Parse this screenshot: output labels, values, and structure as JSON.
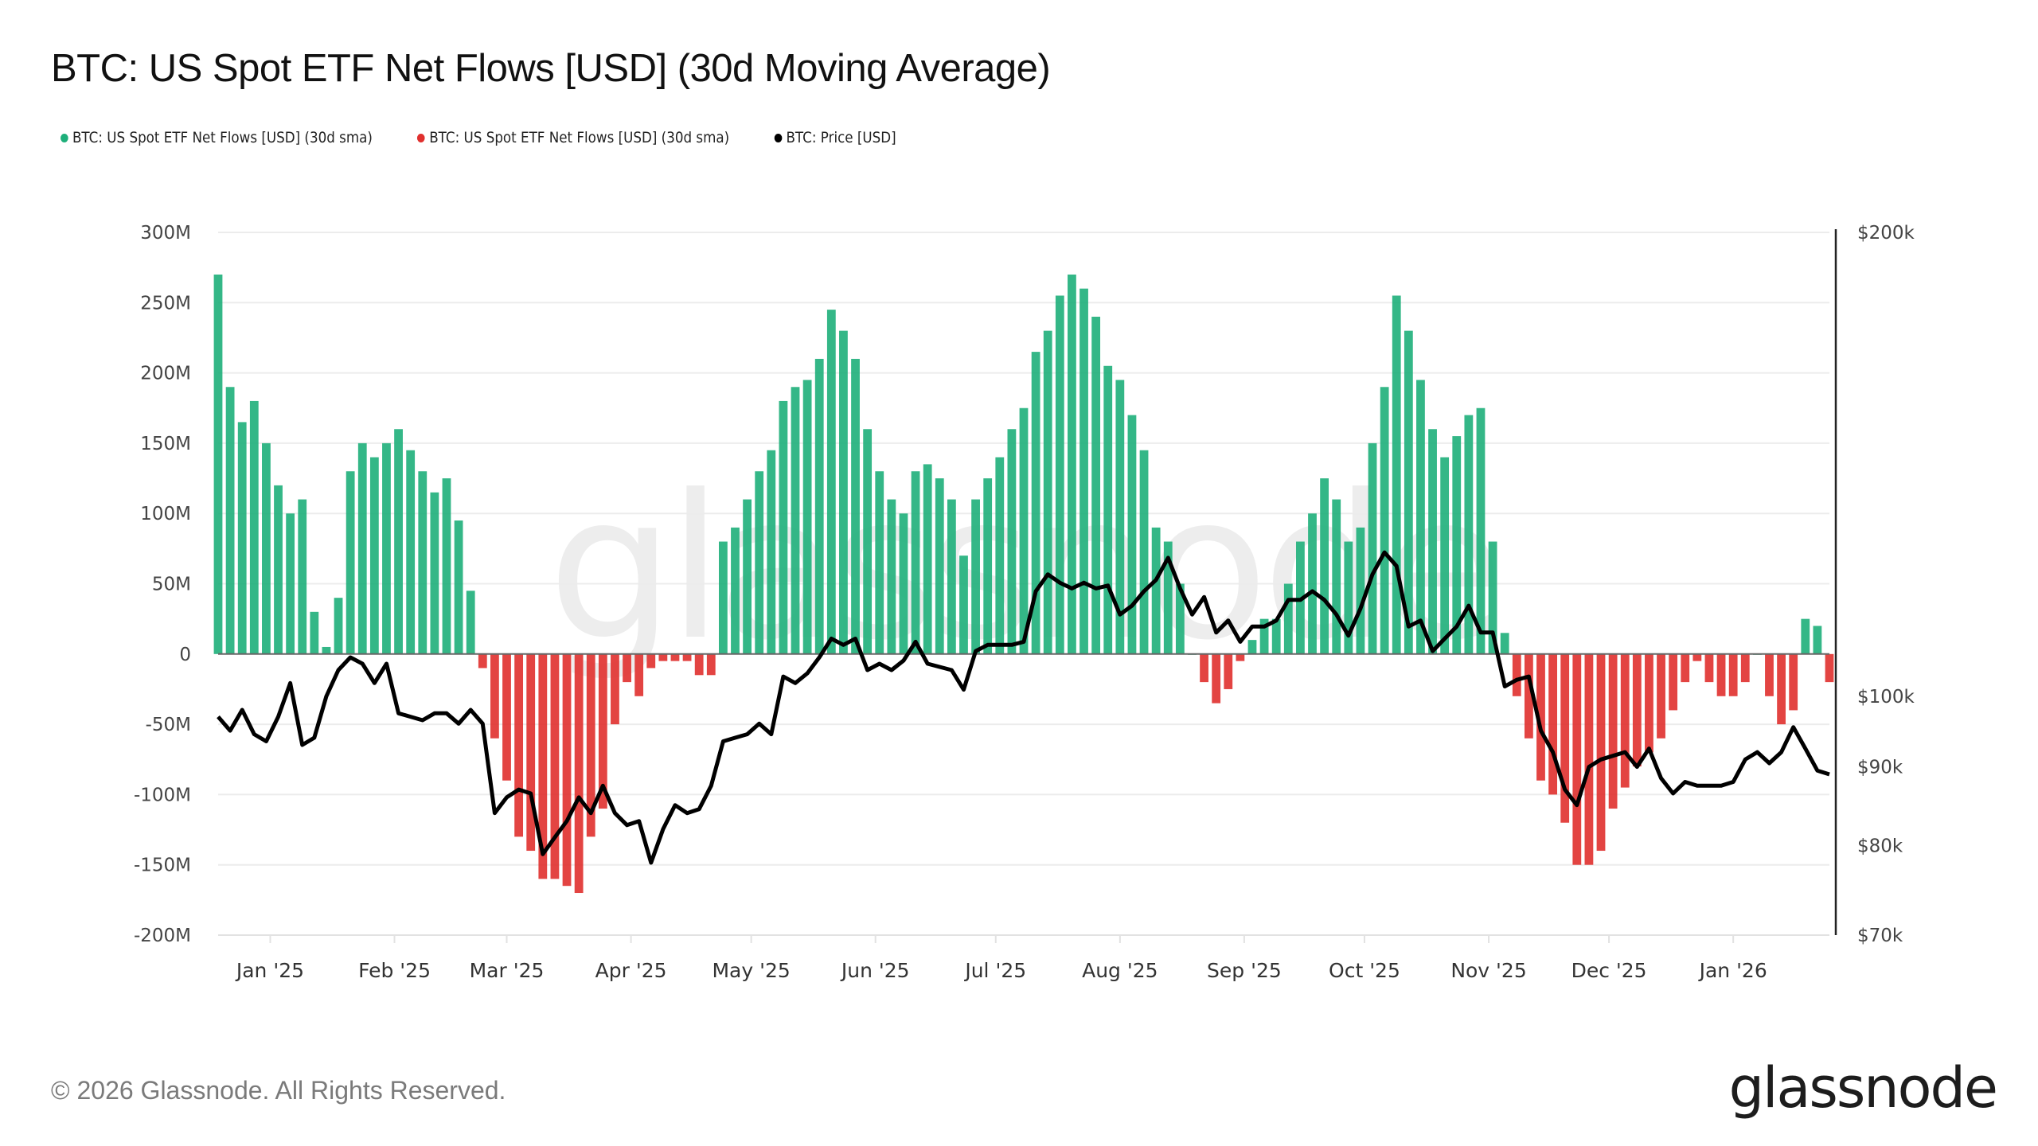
{
  "title": "BTC: US Spot ETF Net Flows [USD] (30d Moving Average)",
  "legend": [
    {
      "label": "BTC: US Spot ETF Net Flows [USD] (30d sma)",
      "color": "#1eaf7a"
    },
    {
      "label": "BTC: US Spot ETF Net Flows [USD] (30d sma)",
      "color": "#e0302e"
    },
    {
      "label": "BTC: Price [USD]",
      "color": "#000000"
    }
  ],
  "footer": "© 2026 Glassnode. All Rights Reserved.",
  "logo": "glassnode",
  "watermark": "glassnode",
  "chart_data": {
    "type": "bar+line",
    "title": "BTC: US Spot ETF Net Flows [USD] (30d Moving Average)",
    "left_axis": {
      "scale": "linear",
      "range": [
        -200,
        300
      ],
      "unit": "M USD",
      "ticks": [
        {
          "v": 300,
          "label": "300M"
        },
        {
          "v": 250,
          "label": "250M"
        },
        {
          "v": 200,
          "label": "200M"
        },
        {
          "v": 150,
          "label": "150M"
        },
        {
          "v": 100,
          "label": "100M"
        },
        {
          "v": 50,
          "label": "50M"
        },
        {
          "v": 0,
          "label": "0"
        },
        {
          "v": -50,
          "label": "-50M"
        },
        {
          "v": -100,
          "label": "-100M"
        },
        {
          "v": -150,
          "label": "-150M"
        },
        {
          "v": -200,
          "label": "-200M"
        }
      ]
    },
    "right_axis": {
      "scale": "log",
      "range": [
        70,
        200
      ],
      "unit": "k USD",
      "ticks": [
        {
          "v": 200,
          "label": "$200k"
        },
        {
          "v": 100,
          "label": "$100k"
        },
        {
          "v": 90,
          "label": "$90k"
        },
        {
          "v": 80,
          "label": "$80k"
        },
        {
          "v": 70,
          "label": "$70k"
        }
      ]
    },
    "x_axis": {
      "range": [
        "2024-12-19",
        "2026-01-25"
      ],
      "ticks": [
        {
          "date": "2025-01-01",
          "label": "Jan '25"
        },
        {
          "date": "2025-02-01",
          "label": "Feb '25"
        },
        {
          "date": "2025-03-01",
          "label": "Mar '25"
        },
        {
          "date": "2025-04-01",
          "label": "Apr '25"
        },
        {
          "date": "2025-05-01",
          "label": "May '25"
        },
        {
          "date": "2025-06-01",
          "label": "Jun '25"
        },
        {
          "date": "2025-07-01",
          "label": "Jul '25"
        },
        {
          "date": "2025-08-01",
          "label": "Aug '25"
        },
        {
          "date": "2025-09-01",
          "label": "Sep '25"
        },
        {
          "date": "2025-10-01",
          "label": "Oct '25"
        },
        {
          "date": "2025-11-01",
          "label": "Nov '25"
        },
        {
          "date": "2025-12-01",
          "label": "Dec '25"
        },
        {
          "date": "2026-01-01",
          "label": "Jan '26"
        }
      ]
    },
    "grid": true,
    "legend_position": "top-left",
    "positive_color": "#1eaf7a",
    "negative_color": "#e0302e",
    "price_color": "#000000",
    "columns": [
      "date",
      "net_flow_30d_sma_musd",
      "price_kusd"
    ],
    "points": [
      [
        "2024-12-19",
        270,
        97
      ],
      [
        "2024-12-22",
        190,
        95
      ],
      [
        "2024-12-25",
        165,
        98
      ],
      [
        "2024-12-28",
        180,
        94.5
      ],
      [
        "2024-12-31",
        150,
        93.5
      ],
      [
        "2025-01-03",
        120,
        97
      ],
      [
        "2025-01-06",
        100,
        102
      ],
      [
        "2025-01-09",
        110,
        93
      ],
      [
        "2025-01-12",
        30,
        94
      ],
      [
        "2025-01-15",
        5,
        100
      ],
      [
        "2025-01-18",
        40,
        104
      ],
      [
        "2025-01-21",
        130,
        106
      ],
      [
        "2025-01-24",
        150,
        105
      ],
      [
        "2025-01-27",
        140,
        102
      ],
      [
        "2025-01-30",
        150,
        105
      ],
      [
        "2025-02-02",
        160,
        97.5
      ],
      [
        "2025-02-05",
        145,
        97
      ],
      [
        "2025-02-08",
        130,
        96.5
      ],
      [
        "2025-02-11",
        115,
        97.5
      ],
      [
        "2025-02-14",
        125,
        97.5
      ],
      [
        "2025-02-17",
        95,
        96
      ],
      [
        "2025-02-20",
        45,
        98
      ],
      [
        "2025-02-23",
        -10,
        96
      ],
      [
        "2025-02-26",
        -60,
        84
      ],
      [
        "2025-03-01",
        -90,
        86
      ],
      [
        "2025-03-04",
        -130,
        87
      ],
      [
        "2025-03-07",
        -140,
        86.5
      ],
      [
        "2025-03-10",
        -160,
        79
      ],
      [
        "2025-03-13",
        -160,
        81
      ],
      [
        "2025-03-16",
        -165,
        83
      ],
      [
        "2025-03-19",
        -170,
        86
      ],
      [
        "2025-03-22",
        -130,
        84
      ],
      [
        "2025-03-25",
        -110,
        87.5
      ],
      [
        "2025-03-28",
        -50,
        84
      ],
      [
        "2025-03-31",
        -20,
        82.5
      ],
      [
        "2025-04-03",
        -30,
        83
      ],
      [
        "2025-04-06",
        -10,
        78
      ],
      [
        "2025-04-09",
        -5,
        82
      ],
      [
        "2025-04-12",
        -5,
        85
      ],
      [
        "2025-04-15",
        -5,
        84
      ],
      [
        "2025-04-18",
        -15,
        84.5
      ],
      [
        "2025-04-21",
        -15,
        87.5
      ],
      [
        "2025-04-24",
        80,
        93.5
      ],
      [
        "2025-04-27",
        90,
        94
      ],
      [
        "2025-04-30",
        110,
        94.5
      ],
      [
        "2025-05-03",
        130,
        96
      ],
      [
        "2025-05-06",
        145,
        94.5
      ],
      [
        "2025-05-09",
        180,
        103
      ],
      [
        "2025-05-12",
        190,
        102
      ],
      [
        "2025-05-15",
        195,
        103.5
      ],
      [
        "2025-05-18",
        210,
        106
      ],
      [
        "2025-05-21",
        245,
        109
      ],
      [
        "2025-05-24",
        230,
        108
      ],
      [
        "2025-05-27",
        210,
        109
      ],
      [
        "2025-05-30",
        160,
        104
      ],
      [
        "2025-06-02",
        130,
        105
      ],
      [
        "2025-06-05",
        110,
        104
      ],
      [
        "2025-06-08",
        100,
        105.5
      ],
      [
        "2025-06-11",
        130,
        108.5
      ],
      [
        "2025-06-14",
        135,
        105
      ],
      [
        "2025-06-17",
        125,
        104.5
      ],
      [
        "2025-06-20",
        110,
        104
      ],
      [
        "2025-06-23",
        70,
        101
      ],
      [
        "2025-06-26",
        110,
        107
      ],
      [
        "2025-06-29",
        125,
        108
      ],
      [
        "2025-07-02",
        140,
        108
      ],
      [
        "2025-07-05",
        160,
        108
      ],
      [
        "2025-07-08",
        175,
        108.5
      ],
      [
        "2025-07-11",
        215,
        117
      ],
      [
        "2025-07-14",
        230,
        120
      ],
      [
        "2025-07-17",
        255,
        118.5
      ],
      [
        "2025-07-20",
        270,
        117.5
      ],
      [
        "2025-07-23",
        260,
        118.5
      ],
      [
        "2025-07-26",
        240,
        117.5
      ],
      [
        "2025-07-29",
        205,
        118
      ],
      [
        "2025-08-01",
        195,
        113
      ],
      [
        "2025-08-04",
        170,
        114.5
      ],
      [
        "2025-08-07",
        145,
        117
      ],
      [
        "2025-08-10",
        90,
        119
      ],
      [
        "2025-08-13",
        80,
        123
      ],
      [
        "2025-08-16",
        50,
        117.5
      ],
      [
        "2025-08-19",
        0,
        113
      ],
      [
        "2025-08-22",
        -20,
        116
      ],
      [
        "2025-08-25",
        -35,
        110
      ],
      [
        "2025-08-28",
        -25,
        112
      ],
      [
        "2025-08-31",
        -5,
        108.5
      ],
      [
        "2025-09-03",
        10,
        111
      ],
      [
        "2025-09-06",
        25,
        111
      ],
      [
        "2025-09-09",
        25,
        112
      ],
      [
        "2025-09-12",
        50,
        115.5
      ],
      [
        "2025-09-15",
        80,
        115.5
      ],
      [
        "2025-09-18",
        100,
        117
      ],
      [
        "2025-09-21",
        125,
        115.5
      ],
      [
        "2025-09-24",
        110,
        113
      ],
      [
        "2025-09-27",
        80,
        109.5
      ],
      [
        "2025-09-30",
        90,
        114
      ],
      [
        "2025-10-03",
        150,
        120
      ],
      [
        "2025-10-06",
        190,
        124
      ],
      [
        "2025-10-09",
        255,
        121.5
      ],
      [
        "2025-10-12",
        230,
        111
      ],
      [
        "2025-10-15",
        195,
        112
      ],
      [
        "2025-10-18",
        160,
        107
      ],
      [
        "2025-10-21",
        140,
        109
      ],
      [
        "2025-10-24",
        155,
        111
      ],
      [
        "2025-10-27",
        170,
        114.5
      ],
      [
        "2025-10-30",
        175,
        110
      ],
      [
        "2025-11-02",
        80,
        110
      ],
      [
        "2025-11-05",
        15,
        101.5
      ],
      [
        "2025-11-08",
        -30,
        102.5
      ],
      [
        "2025-11-11",
        -60,
        103
      ],
      [
        "2025-11-14",
        -90,
        95
      ],
      [
        "2025-11-17",
        -100,
        92
      ],
      [
        "2025-11-20",
        -120,
        87
      ],
      [
        "2025-11-23",
        -150,
        85
      ],
      [
        "2025-11-26",
        -150,
        90
      ],
      [
        "2025-11-29",
        -140,
        91
      ],
      [
        "2025-12-02",
        -110,
        91.5
      ],
      [
        "2025-12-05",
        -95,
        92
      ],
      [
        "2025-12-08",
        -80,
        90
      ],
      [
        "2025-12-11",
        -70,
        92.5
      ],
      [
        "2025-12-14",
        -60,
        88.5
      ],
      [
        "2025-12-17",
        -40,
        86.5
      ],
      [
        "2025-12-20",
        -20,
        88
      ],
      [
        "2025-12-23",
        -5,
        87.5
      ],
      [
        "2025-12-26",
        -20,
        87.5
      ],
      [
        "2025-12-29",
        -30,
        87.5
      ],
      [
        "2026-01-01",
        -30,
        88
      ],
      [
        "2026-01-04",
        -20,
        91
      ],
      [
        "2026-01-07",
        0,
        92
      ],
      [
        "2026-01-10",
        -30,
        90.5
      ],
      [
        "2026-01-13",
        -50,
        92
      ],
      [
        "2026-01-16",
        -40,
        95.5
      ],
      [
        "2026-01-19",
        25,
        92.5
      ],
      [
        "2026-01-22",
        20,
        89.5
      ],
      [
        "2026-01-25",
        -20,
        89
      ]
    ]
  }
}
